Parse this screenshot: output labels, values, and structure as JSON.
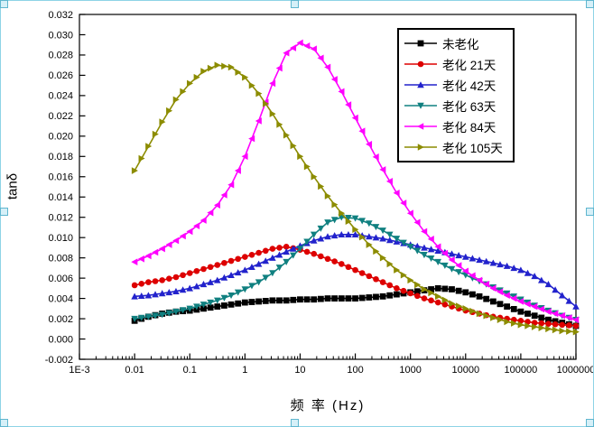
{
  "selection": {
    "border_color": "#8ed3e6",
    "handle_fill": "#d6f0f8",
    "handle_border": "#5fb6cf"
  },
  "chart_data": {
    "type": "line",
    "title": "",
    "xlabel": "频 率 (Hz)",
    "ylabel": "tanδ",
    "x_scale": "log",
    "xlim": [
      0.001,
      1000000
    ],
    "ylim": [
      -0.002,
      0.032
    ],
    "grid": false,
    "legend_position": "top-right",
    "x_ticks": [
      {
        "value": 0.001,
        "label": "1E-3"
      },
      {
        "value": 0.01,
        "label": "0.01"
      },
      {
        "value": 0.1,
        "label": "0.1"
      },
      {
        "value": 1,
        "label": "1"
      },
      {
        "value": 10,
        "label": "10"
      },
      {
        "value": 100,
        "label": "100"
      },
      {
        "value": 1000,
        "label": "1000"
      },
      {
        "value": 10000,
        "label": "10000"
      },
      {
        "value": 100000,
        "label": "100000"
      },
      {
        "value": 1000000,
        "label": "1000000"
      }
    ],
    "y_ticks": [
      {
        "value": -0.002,
        "label": "-0.002"
      },
      {
        "value": 0.0,
        "label": "0.000"
      },
      {
        "value": 0.002,
        "label": "0.002"
      },
      {
        "value": 0.004,
        "label": "0.004"
      },
      {
        "value": 0.006,
        "label": "0.006"
      },
      {
        "value": 0.008,
        "label": "0.008"
      },
      {
        "value": 0.01,
        "label": "0.010"
      },
      {
        "value": 0.012,
        "label": "0.012"
      },
      {
        "value": 0.014,
        "label": "0.014"
      },
      {
        "value": 0.016,
        "label": "0.016"
      },
      {
        "value": 0.018,
        "label": "0.018"
      },
      {
        "value": 0.02,
        "label": "0.020"
      },
      {
        "value": 0.022,
        "label": "0.022"
      },
      {
        "value": 0.024,
        "label": "0.024"
      },
      {
        "value": 0.026,
        "label": "0.026"
      },
      {
        "value": 0.028,
        "label": "0.028"
      },
      {
        "value": 0.03,
        "label": "0.030"
      },
      {
        "value": 0.032,
        "label": "0.032"
      }
    ],
    "x_log10": [
      -2,
      -1.75,
      -1.5,
      -1.25,
      -1,
      -0.75,
      -0.5,
      -0.25,
      0,
      0.25,
      0.5,
      0.75,
      1,
      1.25,
      1.5,
      1.75,
      2,
      2.25,
      2.5,
      2.75,
      3,
      3.25,
      3.5,
      3.75,
      4,
      4.25,
      4.5,
      4.75,
      5,
      5.25,
      5.5,
      5.75,
      6
    ],
    "series": [
      {
        "name": "未老化",
        "color": "#000000",
        "marker": "square",
        "values": [
          0.0018,
          0.0022,
          0.0025,
          0.0027,
          0.0028,
          0.003,
          0.0032,
          0.0034,
          0.0036,
          0.0037,
          0.0038,
          0.0038,
          0.0039,
          0.0039,
          0.004,
          0.004,
          0.004,
          0.0041,
          0.0042,
          0.0044,
          0.0046,
          0.0048,
          0.005,
          0.0049,
          0.0046,
          0.0042,
          0.0037,
          0.0032,
          0.0027,
          0.0023,
          0.0019,
          0.0016,
          0.0013
        ]
      },
      {
        "name": "老化 21天",
        "color": "#dd0000",
        "marker": "circle",
        "values": [
          0.0053,
          0.0056,
          0.0058,
          0.0061,
          0.0065,
          0.0069,
          0.0073,
          0.0077,
          0.0081,
          0.0085,
          0.0089,
          0.0091,
          0.0088,
          0.0084,
          0.0079,
          0.0074,
          0.0068,
          0.0062,
          0.0056,
          0.005,
          0.0045,
          0.004,
          0.0036,
          0.0032,
          0.0028,
          0.0025,
          0.0022,
          0.002,
          0.0018,
          0.0016,
          0.0015,
          0.0014,
          0.0013
        ]
      },
      {
        "name": "老化 42天",
        "color": "#2222cc",
        "marker": "triangle-up",
        "values": [
          0.0042,
          0.0043,
          0.0045,
          0.0047,
          0.005,
          0.0054,
          0.0058,
          0.0063,
          0.0068,
          0.0074,
          0.008,
          0.0086,
          0.0092,
          0.0097,
          0.0101,
          0.0103,
          0.0103,
          0.0101,
          0.0099,
          0.0096,
          0.0093,
          0.009,
          0.0087,
          0.0084,
          0.0081,
          0.0078,
          0.0075,
          0.0072,
          0.0068,
          0.0062,
          0.0054,
          0.0043,
          0.0032
        ]
      },
      {
        "name": "老化 63天",
        "color": "#108080",
        "marker": "triangle-down",
        "values": [
          0.002,
          0.0022,
          0.0024,
          0.0027,
          0.003,
          0.0034,
          0.0038,
          0.0043,
          0.0049,
          0.0056,
          0.0065,
          0.0076,
          0.0089,
          0.0103,
          0.0115,
          0.012,
          0.0119,
          0.0114,
          0.0107,
          0.0099,
          0.0091,
          0.0083,
          0.0076,
          0.0069,
          0.0063,
          0.0057,
          0.0051,
          0.0045,
          0.0039,
          0.0033,
          0.0028,
          0.0023,
          0.0019
        ]
      },
      {
        "name": "老化 84天",
        "color": "#ff00ff",
        "marker": "triangle-left",
        "values": [
          0.0076,
          0.0082,
          0.0089,
          0.0097,
          0.0106,
          0.0117,
          0.0132,
          0.0152,
          0.018,
          0.0215,
          0.0252,
          0.0282,
          0.0292,
          0.0286,
          0.0268,
          0.0244,
          0.0218,
          0.0192,
          0.0167,
          0.0144,
          0.0124,
          0.0106,
          0.0091,
          0.0078,
          0.0067,
          0.0058,
          0.005,
          0.0043,
          0.0037,
          0.0032,
          0.0027,
          0.0023,
          0.0019
        ]
      },
      {
        "name": "老化 105天",
        "color": "#8c8c00",
        "marker": "triangle-right",
        "values": [
          0.0166,
          0.019,
          0.0214,
          0.0236,
          0.0252,
          0.0264,
          0.027,
          0.0268,
          0.0258,
          0.0242,
          0.0222,
          0.0201,
          0.018,
          0.016,
          0.0141,
          0.0124,
          0.0108,
          0.0093,
          0.008,
          0.0068,
          0.0058,
          0.0049,
          0.0042,
          0.0035,
          0.003,
          0.0025,
          0.0021,
          0.0017,
          0.0014,
          0.0012,
          0.001,
          0.0008,
          0.0007
        ]
      }
    ]
  }
}
